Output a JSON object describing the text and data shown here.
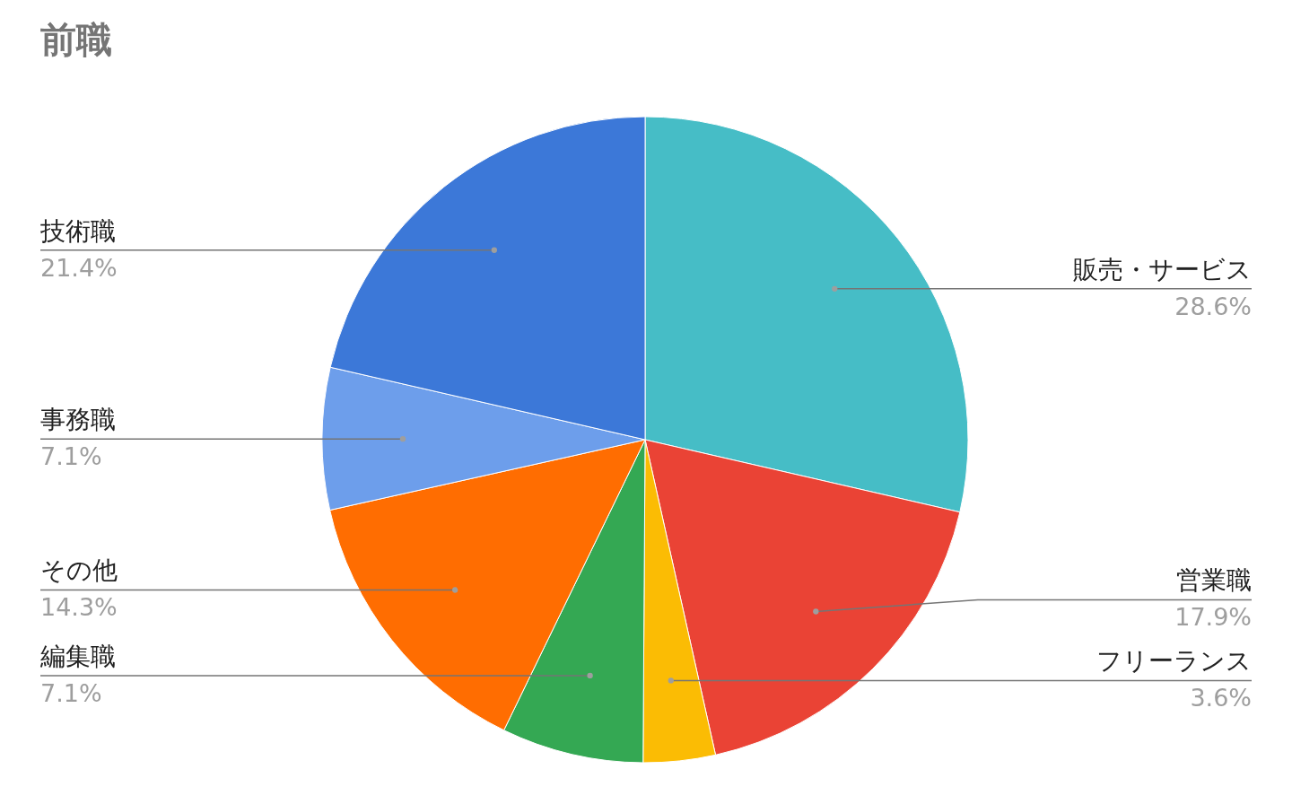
{
  "chart_data": {
    "type": "pie",
    "title": "前職",
    "categories": [
      "販売・サービス",
      "営業職",
      "フリーランス",
      "編集職",
      "その他",
      "事務職",
      "技術職"
    ],
    "values": [
      28.6,
      17.9,
      3.6,
      7.1,
      14.3,
      7.1,
      21.4
    ],
    "colors": [
      "#46bdc6",
      "#ea4335",
      "#fbbc04",
      "#34a853",
      "#ff6d01",
      "#6d9eeb",
      "#3c78d8"
    ],
    "value_labels": [
      "28.6%",
      "17.9%",
      "3.6%",
      "7.1%",
      "14.3%",
      "7.1%",
      "21.4%"
    ]
  }
}
